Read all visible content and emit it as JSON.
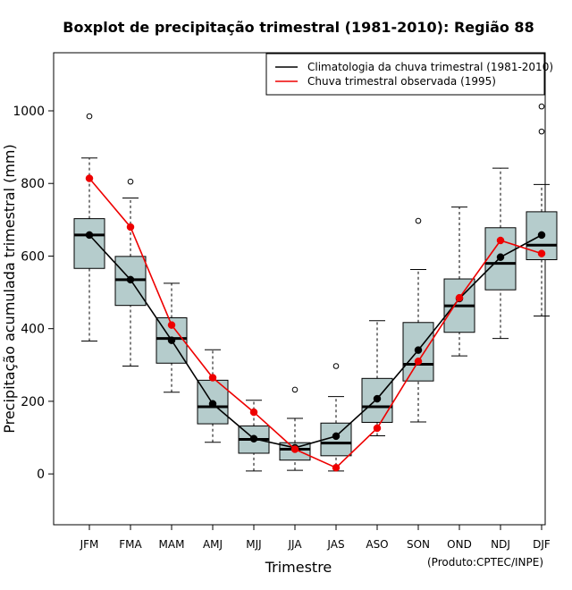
{
  "chart_data": {
    "type": "boxplot",
    "title": "Boxplot de precipitação trimestral (1981-2010): Região 88",
    "xlabel": "Trimestre",
    "ylabel": "Precipitação acumulada trimestral (mm)",
    "ylim": [
      -140,
      1160
    ],
    "yticks": [
      0,
      200,
      400,
      600,
      800,
      1000
    ],
    "categories": [
      "JFM",
      "FMA",
      "MAM",
      "AMJ",
      "MJJ",
      "JJA",
      "JAS",
      "ASO",
      "SON",
      "OND",
      "NDJ",
      "DJF"
    ],
    "boxes": [
      {
        "whisker_low": 366,
        "q1": 566,
        "median": 658,
        "q3": 703,
        "whisker_high": 870,
        "outliers": [
          985
        ]
      },
      {
        "whisker_low": 297,
        "q1": 464,
        "median": 535,
        "q3": 599,
        "whisker_high": 760,
        "outliers": [
          805
        ]
      },
      {
        "whisker_low": 225,
        "q1": 305,
        "median": 373,
        "q3": 430,
        "whisker_high": 525,
        "outliers": []
      },
      {
        "whisker_low": 87,
        "q1": 138,
        "median": 185,
        "q3": 258,
        "whisker_high": 342,
        "outliers": []
      },
      {
        "whisker_low": 8,
        "q1": 57,
        "median": 95,
        "q3": 132,
        "whisker_high": 203,
        "outliers": []
      },
      {
        "whisker_low": 10,
        "q1": 38,
        "median": 68,
        "q3": 86,
        "whisker_high": 153,
        "outliers": [
          232
        ]
      },
      {
        "whisker_low": 8,
        "q1": 50,
        "median": 85,
        "q3": 140,
        "whisker_high": 213,
        "outliers": [
          297
        ]
      },
      {
        "whisker_low": 105,
        "q1": 142,
        "median": 185,
        "q3": 263,
        "whisker_high": 422,
        "outliers": []
      },
      {
        "whisker_low": 143,
        "q1": 256,
        "median": 302,
        "q3": 417,
        "whisker_high": 563,
        "outliers": [
          697
        ]
      },
      {
        "whisker_low": 325,
        "q1": 390,
        "median": 463,
        "q3": 537,
        "whisker_high": 735,
        "outliers": []
      },
      {
        "whisker_low": 373,
        "q1": 507,
        "median": 580,
        "q3": 678,
        "whisker_high": 842,
        "outliers": []
      },
      {
        "whisker_low": 435,
        "q1": 590,
        "median": 630,
        "q3": 722,
        "whisker_high": 797,
        "outliers": [
          943,
          1012
        ]
      }
    ],
    "series": [
      {
        "name": "Climatologia da chuva trimestral (1981-2010)",
        "color": "#000000",
        "values": [
          658,
          535,
          368,
          193,
          97,
          72,
          104,
          207,
          341,
          483,
          597,
          658
        ]
      },
      {
        "name": "Chuva trimestral observada (1995)",
        "color": "#ee0000",
        "values": [
          814,
          680,
          410,
          265,
          170,
          68,
          17,
          126,
          310,
          485,
          643,
          607
        ]
      }
    ],
    "box_fill": "#b5cccc",
    "legend_position": "top-right",
    "source_note": "(Produto:CPTEC/INPE)"
  }
}
